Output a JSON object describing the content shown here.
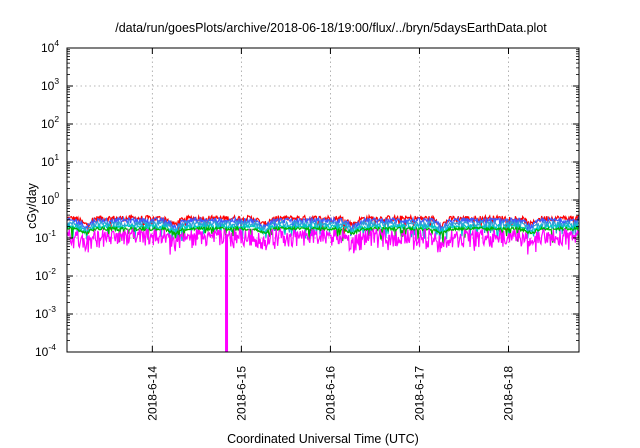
{
  "chart_data": {
    "type": "line",
    "title": "/data/run/goesPlots/archive/2018-06-18/19:00/flux/../bryn/5daysEarthData.plot",
    "xlabel": "Coordinated Universal Time (UTC)",
    "ylabel": "cGy/day",
    "yscale": "log",
    "ylim": [
      0.0001,
      10000
    ],
    "y_ticks": [
      {
        "base": "10",
        "exp": "-4",
        "value": 0.0001
      },
      {
        "base": "10",
        "exp": "-3",
        "value": 0.001
      },
      {
        "base": "10",
        "exp": "-2",
        "value": 0.01
      },
      {
        "base": "10",
        "exp": "-1",
        "value": 0.1
      },
      {
        "base": "10",
        "exp": "0",
        "value": 1
      },
      {
        "base": "10",
        "exp": "1",
        "value": 10
      },
      {
        "base": "10",
        "exp": "2",
        "value": 100
      },
      {
        "base": "10",
        "exp": "3",
        "value": 1000
      },
      {
        "base": "10",
        "exp": "4",
        "value": 10000
      }
    ],
    "xlim": [
      "2018-06-13T01:00",
      "2018-06-18T19:00"
    ],
    "x_ticks": [
      {
        "label": "2018-6-14",
        "value": "2018-06-14T00:00"
      },
      {
        "label": "2018-6-15",
        "value": "2018-06-15T00:00"
      },
      {
        "label": "2018-6-16",
        "value": "2018-06-16T00:00"
      },
      {
        "label": "2018-6-17",
        "value": "2018-06-17T00:00"
      },
      {
        "label": "2018-6-18",
        "value": "2018-06-18T00:00"
      }
    ],
    "grid": true,
    "series": [
      {
        "color": "#ff0000",
        "base": 0.33,
        "noise": 0.18,
        "dip": 0.3,
        "spike_depth": 0.05
      },
      {
        "color": "#3b5bff",
        "base": 0.29,
        "noise": 0.16,
        "dip": 0.3,
        "spike_depth": 0.06
      },
      {
        "color": "#2f9fd8",
        "base": 0.24,
        "noise": 0.14,
        "dip": 0.28,
        "spike_depth": 0.06
      },
      {
        "color": "#00c8c8",
        "base": 0.2,
        "noise": 0.12,
        "dip": 0.25,
        "spike_depth": 0.05
      },
      {
        "color": "#00b400",
        "base": 0.175,
        "noise": 0.1,
        "dip": 0.22,
        "spike_depth": 0.05
      },
      {
        "color": "#ff00ff",
        "base": 0.135,
        "noise": 0.28,
        "dip": 0.35,
        "spike_depth": 0.45
      }
    ],
    "events": [
      {
        "series_color": "#ff00ff",
        "time": "2018-06-14T20:00",
        "value": 0.0001
      }
    ]
  }
}
